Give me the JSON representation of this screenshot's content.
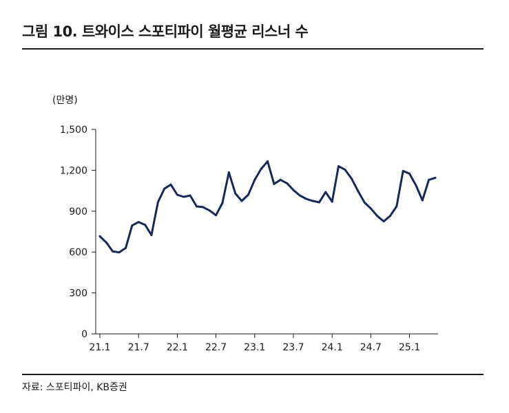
{
  "header": {
    "title": "그림 10. 트와이스 스포티파이 월평균 리스너 수"
  },
  "source": "자료: 스포티파이, KB증권",
  "chart_data": {
    "type": "line",
    "title": "그림 10. 트와이스 스포티파이 월평균 리스너 수",
    "ylabel": "(만명)",
    "xlabel": "",
    "ylim": [
      0,
      1500
    ],
    "yticks": [
      0,
      300,
      600,
      900,
      1200,
      1500
    ],
    "ytick_labels": [
      "0",
      "300",
      "600",
      "900",
      "1,200",
      "1,500"
    ],
    "xtick_labels": [
      "21.1",
      "21.7",
      "22.1",
      "22.7",
      "23.1",
      "23.7",
      "24.1",
      "24.7",
      "25.1"
    ],
    "xtick_index": [
      0,
      6,
      12,
      18,
      24,
      30,
      36,
      42,
      48
    ],
    "grid": false,
    "legend": "none",
    "line_color": "#14295a",
    "series": [
      {
        "values": [
          715,
          670,
          605,
          598,
          630,
          795,
          820,
          800,
          725,
          965,
          1065,
          1095,
          1020,
          1005,
          1015,
          935,
          930,
          905,
          870,
          960,
          1185,
          1030,
          975,
          1020,
          1130,
          1210,
          1265,
          1100,
          1130,
          1105,
          1055,
          1015,
          990,
          975,
          965,
          1040,
          970,
          1230,
          1205,
          1140,
          1050,
          965,
          920,
          865,
          825,
          865,
          935,
          1195,
          1175,
          1090,
          980,
          1130,
          1145
        ]
      }
    ]
  }
}
